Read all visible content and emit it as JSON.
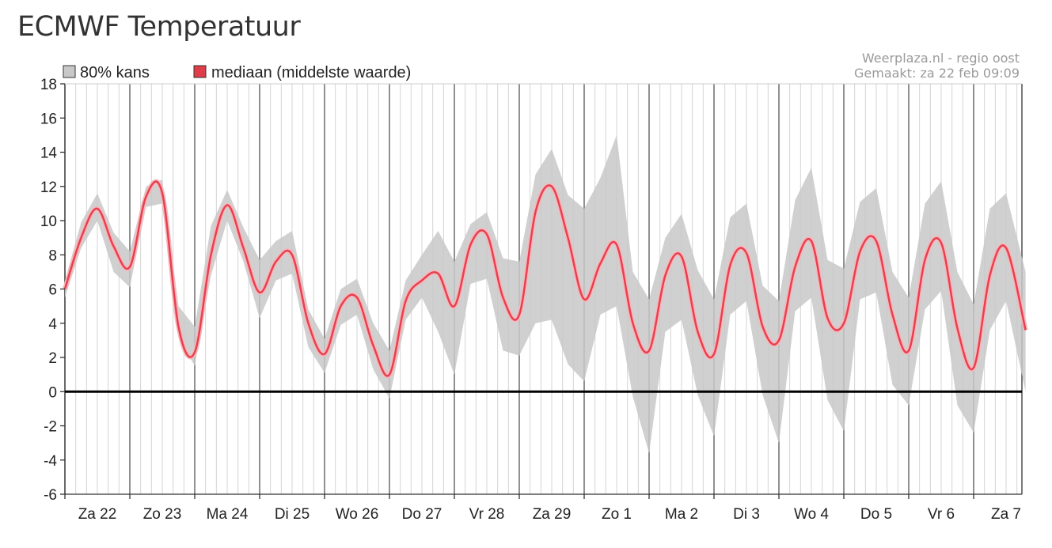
{
  "page": {
    "title": "ECMWF Temperatuur"
  },
  "credits": {
    "source": "Weerplaza.nl - regio oost",
    "made": "Gemaakt: za 22 feb 09:09"
  },
  "chart_data": {
    "type": "area",
    "ylim": [
      -6,
      18
    ],
    "yticks": [
      18,
      16,
      14,
      12,
      10,
      8,
      6,
      4,
      2,
      0,
      -2,
      -4,
      -6
    ],
    "x_unit": "days since Za 22 00:00",
    "xlim": [
      0,
      14.8
    ],
    "day_labels": [
      "Za 22",
      "Zo 23",
      "Ma 24",
      "Di 25",
      "Wo 26",
      "Do 27",
      "Vr 28",
      "Za 29",
      "Zo 1",
      "Ma 2",
      "Di 3",
      "Wo 4",
      "Do 5",
      "Vr 6",
      "Za 7"
    ],
    "legend": {
      "band_label": "80% kans",
      "median_label": "mediaan (middelste waarde)",
      "band_color": "#c8c8c8",
      "median_color": "#e03c4a"
    },
    "colors": {
      "band": "#c8c8c8",
      "median": "#e8404e",
      "median_glow": "#f5b8bd",
      "zero_line": "#000000",
      "day_grid": "#555555",
      "sub_grid": "#d4d4d4"
    },
    "series": [
      {
        "name": "mediaan (middelste waarde)",
        "x": [
          0,
          0.25,
          0.5,
          0.75,
          1.0,
          1.25,
          1.5,
          1.75,
          2.0,
          2.25,
          2.5,
          2.75,
          3.0,
          3.25,
          3.5,
          3.75,
          4.0,
          4.25,
          4.5,
          4.75,
          5.0,
          5.25,
          5.5,
          5.75,
          6.0,
          6.25,
          6.5,
          6.75,
          7.0,
          7.25,
          7.5,
          7.75,
          8.0,
          8.25,
          8.5,
          8.75,
          9.0,
          9.25,
          9.5,
          9.75,
          10.0,
          10.25,
          10.5,
          10.75,
          11.0,
          11.25,
          11.5,
          11.75,
          12.0,
          12.25,
          12.5,
          12.75,
          13.0,
          13.25,
          13.5,
          13.75,
          14.0,
          14.25,
          14.5,
          14.8
        ],
        "y": [
          6.0,
          9.0,
          10.7,
          8.5,
          7.3,
          11.4,
          11.6,
          3.8,
          2.3,
          8.0,
          10.9,
          8.4,
          5.8,
          7.6,
          8.0,
          4.0,
          2.2,
          5.0,
          5.5,
          2.7,
          1.0,
          5.3,
          6.5,
          6.9,
          5.0,
          8.6,
          9.2,
          5.5,
          4.5,
          10.5,
          12.0,
          9.0,
          5.4,
          7.5,
          8.6,
          4.0,
          2.4,
          6.8,
          7.9,
          3.5,
          2.2,
          7.4,
          8.1,
          3.8,
          3.0,
          7.3,
          8.8,
          4.3,
          4.0,
          8.2,
          8.8,
          4.5,
          2.4,
          7.7,
          8.7,
          3.7,
          1.4,
          6.8,
          8.4,
          3.6
        ]
      },
      {
        "name": "80% kans",
        "x": [
          0,
          0.25,
          0.5,
          0.75,
          1.0,
          1.25,
          1.5,
          1.75,
          2.0,
          2.25,
          2.5,
          2.75,
          3.0,
          3.25,
          3.5,
          3.75,
          4.0,
          4.25,
          4.5,
          4.75,
          5.0,
          5.25,
          5.5,
          5.75,
          6.0,
          6.25,
          6.5,
          6.75,
          7.0,
          7.25,
          7.5,
          7.75,
          8.0,
          8.25,
          8.5,
          8.75,
          9.0,
          9.25,
          9.5,
          9.75,
          10.0,
          10.25,
          10.5,
          10.75,
          11.0,
          11.25,
          11.5,
          11.75,
          12.0,
          12.25,
          12.5,
          12.75,
          13.0,
          13.25,
          13.5,
          13.75,
          14.0,
          14.25,
          14.5,
          14.8
        ],
        "low": [
          5.5,
          8.4,
          10.0,
          7.0,
          6.1,
          10.8,
          11.0,
          3.2,
          1.5,
          6.8,
          10.0,
          7.6,
          4.3,
          6.5,
          6.9,
          2.6,
          1.1,
          3.9,
          4.5,
          1.3,
          -0.4,
          4.2,
          5.5,
          3.5,
          1.0,
          6.3,
          6.6,
          2.4,
          2.1,
          4.0,
          4.2,
          1.6,
          0.6,
          4.5,
          5.0,
          -0.3,
          -3.6,
          3.5,
          4.2,
          -0.2,
          -2.6,
          4.5,
          5.3,
          -0.2,
          -3.0,
          4.7,
          5.5,
          -0.5,
          -2.3,
          5.4,
          5.8,
          0.4,
          -0.8,
          4.8,
          5.9,
          -0.8,
          -2.4,
          3.6,
          5.3,
          0.0
        ],
        "high": [
          6.5,
          9.9,
          11.6,
          9.3,
          8.2,
          12.0,
          12.4,
          5.0,
          3.8,
          9.7,
          11.8,
          9.6,
          7.7,
          8.8,
          9.4,
          4.8,
          3.1,
          6.0,
          6.6,
          4.0,
          2.4,
          6.5,
          8.0,
          9.4,
          7.6,
          9.8,
          10.5,
          7.8,
          7.6,
          12.7,
          14.2,
          11.5,
          10.7,
          12.5,
          15.0,
          7.0,
          5.4,
          9.0,
          10.4,
          7.1,
          5.4,
          10.2,
          11.0,
          6.2,
          5.3,
          11.2,
          13.1,
          7.7,
          7.2,
          11.1,
          11.9,
          7.0,
          5.5,
          11.0,
          12.3,
          7.0,
          5.1,
          10.7,
          11.6,
          7.0
        ]
      }
    ]
  }
}
